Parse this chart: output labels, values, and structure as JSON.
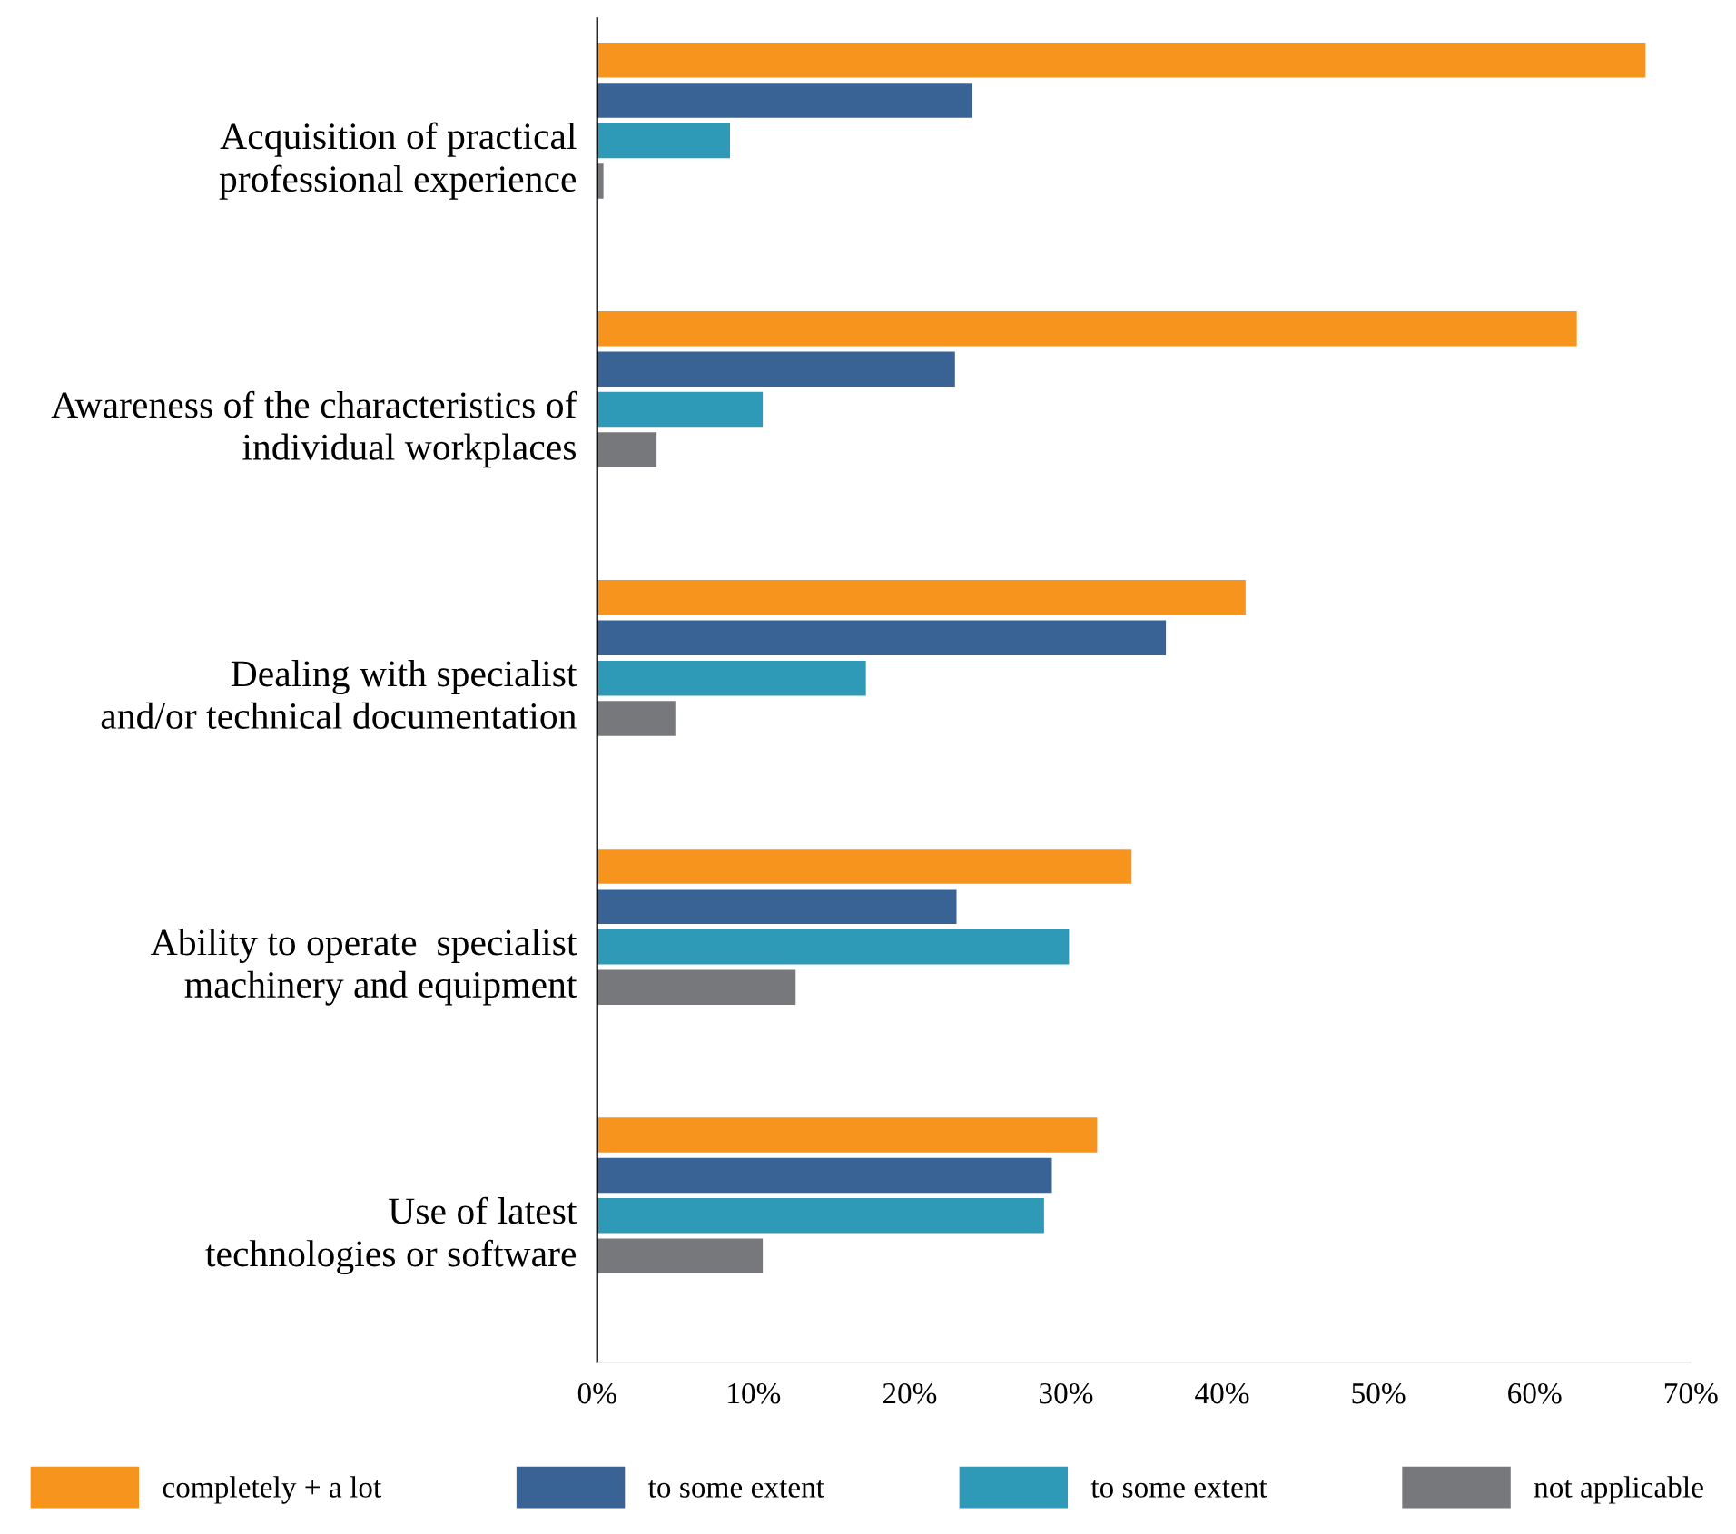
{
  "chart_data": {
    "type": "bar",
    "orientation": "horizontal",
    "categories": [
      "Acquisition of practical\nprofessional experience",
      "Awareness of the characteristics of\nindividual workplaces",
      "Dealing with specialist\nand/or technical documentation",
      "Ability to operate  specialist\nmachinery and equipment",
      "Use of latest\ntechnologies or software"
    ],
    "series": [
      {
        "name": "completely + a lot",
        "color": "#f7941d",
        "values": [
          67.1,
          62.7,
          41.5,
          34.2,
          32.0
        ]
      },
      {
        "name": "to some extent",
        "color": "#3a6395",
        "values": [
          24.0,
          22.9,
          36.4,
          23.0,
          29.1
        ]
      },
      {
        "name": "to some extent",
        "color": "#2e9ab8",
        "values": [
          8.5,
          10.6,
          17.2,
          30.2,
          28.6
        ]
      },
      {
        "name": "not applicable",
        "color": "#77787b",
        "values": [
          0.4,
          3.8,
          5.0,
          12.7,
          10.6
        ]
      }
    ],
    "xlim": [
      0,
      70
    ],
    "xticks": [
      {
        "value": 0,
        "label": "0%"
      },
      {
        "value": 10,
        "label": "10%"
      },
      {
        "value": 20,
        "label": "20%"
      },
      {
        "value": 30,
        "label": "30%"
      },
      {
        "value": 40,
        "label": "40%"
      },
      {
        "value": 50,
        "label": "50%"
      },
      {
        "value": 60,
        "label": "60%"
      },
      {
        "value": 70,
        "label": "70%"
      }
    ],
    "grid": false,
    "legend": "bottom"
  }
}
